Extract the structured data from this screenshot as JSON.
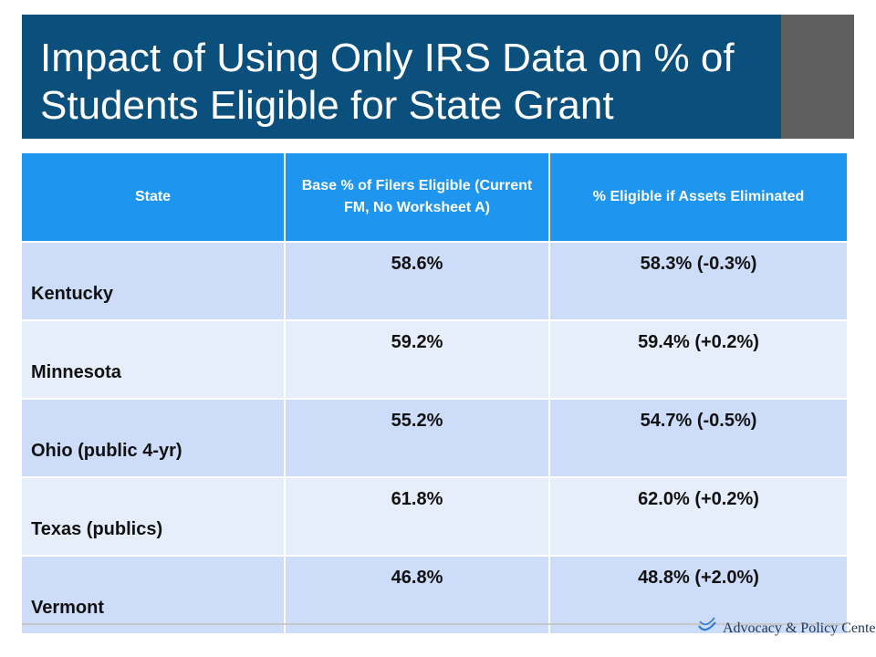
{
  "slide": {
    "title": "Impact of Using Only IRS Data on % of Students Eligible for State Grant"
  },
  "table": {
    "headers": [
      "State",
      "Base % of Filers Eligible (Current FM, No Worksheet A)",
      "% Eligible if Assets Eliminated"
    ],
    "rows": [
      {
        "state": "Kentucky",
        "base": "58.6%",
        "assets_eliminated": "58.3% (-0.3%)"
      },
      {
        "state": "Minnesota",
        "base": "59.2%",
        "assets_eliminated": "59.4% (+0.2%)"
      },
      {
        "state": "Ohio (public 4-yr)",
        "base": "55.2%",
        "assets_eliminated": "54.7% (-0.5%)"
      },
      {
        "state": "Texas (publics)",
        "base": "61.8%",
        "assets_eliminated": "62.0% (+0.2%)"
      },
      {
        "state": "Vermont",
        "base": "46.8%",
        "assets_eliminated": "48.8% (+2.0%)"
      }
    ]
  },
  "footer": {
    "logo_text": "Advocacy & Policy Center",
    "logo_icon": "swoosh-logo-icon"
  },
  "colors": {
    "title_band": "#0b4f7c",
    "title_tab": "#5f5f5f",
    "header_fill": "#1e95ee",
    "row_dark": "#cddcf8",
    "row_light": "#e7eefb"
  }
}
